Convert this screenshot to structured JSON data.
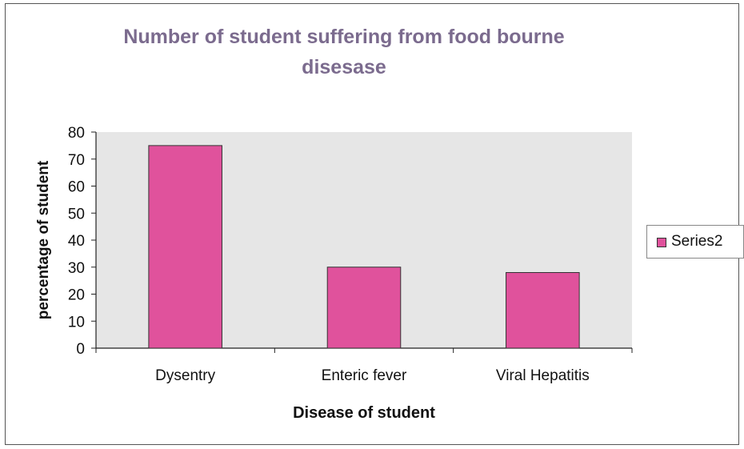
{
  "chart_data": {
    "type": "bar",
    "title_lines": [
      "Number of student suffering from food bourne",
      "disesase"
    ],
    "xlabel": "Disease of student",
    "ylabel": "percentage of student",
    "categories": [
      "Dysentry",
      "Enteric fever",
      "Viral Hepatitis"
    ],
    "series": [
      {
        "name": "Series2",
        "values": [
          75,
          30,
          28
        ],
        "color": "#e0529c"
      }
    ],
    "ylim": [
      0,
      80
    ],
    "yticks": [
      0,
      10,
      20,
      30,
      40,
      50,
      60,
      70,
      80
    ],
    "grid": false,
    "plot_background": "#e6e6e6",
    "legend_position": "right"
  }
}
